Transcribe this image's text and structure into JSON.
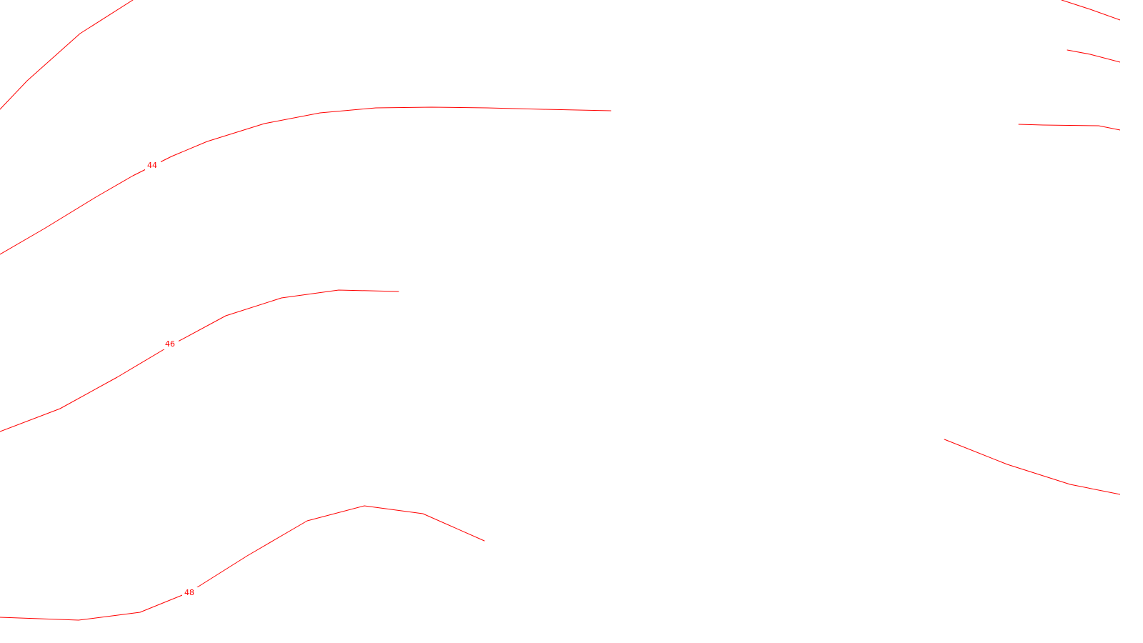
{
  "map": {
    "style": {
      "background_color": "#ffffff",
      "contour_color": "#ff0000"
    },
    "contour_labels": {
      "c44": "44",
      "c46": "46",
      "c48": "48"
    }
  }
}
